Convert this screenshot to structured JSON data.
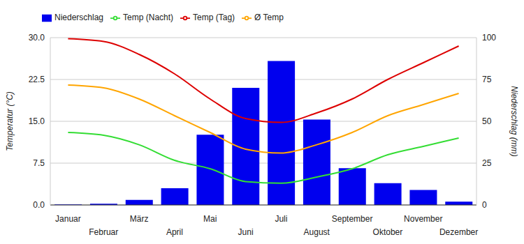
{
  "chart_data": {
    "type": "bar",
    "categories": [
      "Januar",
      "Februar",
      "März",
      "April",
      "Mai",
      "Juni",
      "Juli",
      "August",
      "September",
      "Oktober",
      "November",
      "Dezember"
    ],
    "series": [
      {
        "name": "Niederschlag",
        "type": "bar",
        "axis": "y2",
        "color": "#0000ee",
        "values": [
          0.3,
          0.7,
          3,
          10,
          42,
          70,
          86,
          51,
          22,
          13,
          9,
          2
        ]
      },
      {
        "name": "Temp (Tag)",
        "type": "line",
        "color": "#dd0000",
        "values": [
          29.8,
          29.3,
          27,
          23.5,
          19,
          15.5,
          14.8,
          16.5,
          19,
          22.5,
          25.5,
          28.5
        ]
      },
      {
        "name": "Ø Temp",
        "type": "line",
        "color": "#ffa500",
        "values": [
          21.5,
          21,
          19,
          16,
          13,
          10,
          9.3,
          10.8,
          13,
          16,
          18,
          20
        ]
      },
      {
        "name": "Temp (Nacht)",
        "type": "line",
        "color": "#33dd33",
        "values": [
          13,
          12.5,
          10.8,
          8,
          6.5,
          4.2,
          3.9,
          5,
          6.5,
          9,
          10.5,
          12
        ]
      }
    ],
    "ylabel": "Temperatur (°C)",
    "y2label": "Niederschlag (mm)",
    "ylim": [
      0,
      30
    ],
    "yticks": [
      {
        "value": 0,
        "label": "0.0"
      },
      {
        "value": 7.5,
        "label": "7.5"
      },
      {
        "value": 15,
        "label": "15.0"
      },
      {
        "value": 22.5,
        "label": "22.5"
      },
      {
        "value": 30,
        "label": "30.0"
      }
    ],
    "y2lim": [
      0,
      100
    ],
    "y2ticks": [
      0,
      25,
      50,
      75,
      100
    ],
    "grid": true,
    "legend": "top-left"
  }
}
